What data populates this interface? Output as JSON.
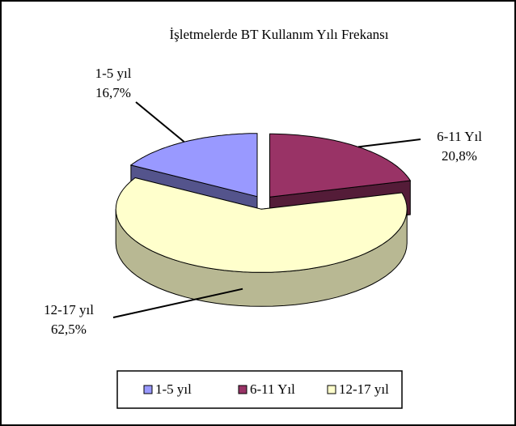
{
  "chart_data": {
    "type": "pie",
    "title": "İşletmelerde BT Kullanım Yılı Frekansı",
    "categories": [
      "1-5 yıl",
      "6-11 Yıl",
      "12-17 yıl"
    ],
    "values": [
      16.7,
      20.8,
      62.5
    ],
    "value_labels": [
      "16,7%",
      "20,8%",
      "62,5%"
    ],
    "colors": [
      "#9999ff",
      "#993366",
      "#ffffcc"
    ],
    "legend": "bottom"
  }
}
